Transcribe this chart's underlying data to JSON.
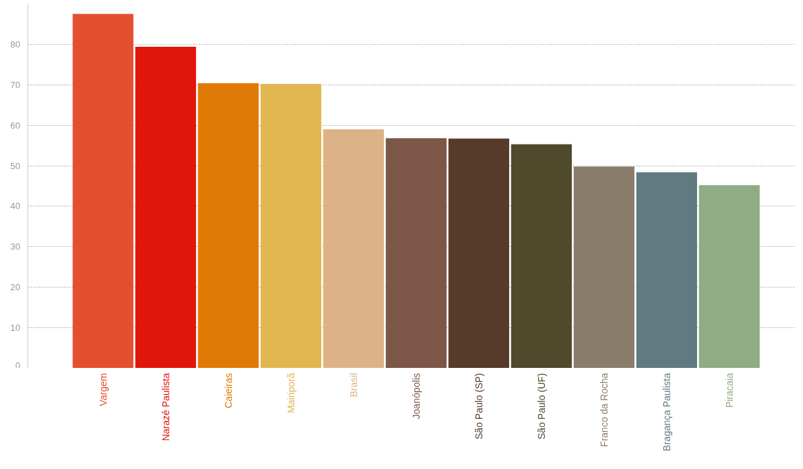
{
  "chart_data": {
    "type": "bar",
    "categories": [
      "Vargem",
      "Narazé Paulista",
      "Caieiras",
      "Mairiporã",
      "Brasil",
      "Joanópolis",
      "São Paulo (SP)",
      "São Paulo (UF)",
      "Franco da Rocha",
      "Bragança Paulista",
      "Piracaia"
    ],
    "values": [
      87.5,
      79.4,
      70.4,
      70.2,
      59.0,
      56.8,
      56.7,
      55.3,
      49.8,
      48.4,
      45.2
    ],
    "colors": [
      "#e4502f",
      "#e0150b",
      "#e07a06",
      "#e2b752",
      "#ddb286",
      "#7c5646",
      "#563b2b",
      "#504a2d",
      "#897c6a",
      "#5f7a80",
      "#8fac84"
    ],
    "ylim": [
      0,
      90
    ],
    "yticks": [
      0,
      10,
      20,
      30,
      40,
      50,
      60,
      70,
      80
    ],
    "grid": "y"
  }
}
